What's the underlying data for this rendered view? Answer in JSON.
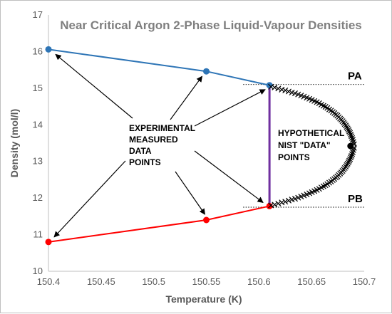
{
  "chart_data": {
    "type": "scatter",
    "title": "Near Critical Argon 2-Phase Liquid-Vapour Densities",
    "xlabel": "Temperature (K)",
    "ylabel": "Density (mol/l)",
    "xlim": [
      150.4,
      150.7
    ],
    "ylim": [
      10,
      17
    ],
    "xticks": [
      "150.4",
      "150.45",
      "150.5",
      "150.55",
      "150.6",
      "150.65",
      "150.7"
    ],
    "yticks": [
      "10",
      "11",
      "12",
      "13",
      "14",
      "15",
      "16",
      "17"
    ],
    "grid": false,
    "colors": {
      "liquid": "#2e75b6",
      "vapour": "#ff0000",
      "critical_line": "#7030a0",
      "nist": "#000000"
    },
    "series": [
      {
        "role": "liquid",
        "x": [
          150.4,
          150.55,
          150.61
        ],
        "y": [
          16.06,
          15.46,
          15.08
        ]
      },
      {
        "role": "vapour",
        "x": [
          150.4,
          150.55,
          150.61
        ],
        "y": [
          10.8,
          11.4,
          11.78
        ]
      }
    ],
    "vertical_line": {
      "x": 150.61,
      "y": [
        11.78,
        15.08
      ]
    },
    "nist_points": {
      "x": [
        150.6114,
        150.6149,
        150.6183,
        150.6217,
        150.625,
        150.6282,
        150.6313,
        150.6343,
        150.6372,
        150.64,
        150.6427,
        150.6454,
        150.6479,
        150.6503,
        150.6527,
        150.655,
        150.6572,
        150.6593,
        150.6613,
        150.6632,
        150.665,
        150.6668,
        150.6685,
        150.6701,
        150.6717,
        150.6731,
        150.6745,
        150.6758,
        150.6771,
        150.6783,
        150.6794,
        150.6805,
        150.6815,
        150.6825,
        150.6834,
        150.6842,
        150.6851,
        150.6858,
        150.6865,
        150.6872,
        150.6879,
        150.6885,
        150.6891,
        150.6897,
        150.6903,
        150.6903,
        150.6897,
        150.6891,
        150.6885,
        150.6879,
        150.6872,
        150.6865,
        150.6858,
        150.6851,
        150.6842,
        150.6834,
        150.6825,
        150.6815,
        150.6805,
        150.6794,
        150.6783,
        150.6771,
        150.6758,
        150.6745,
        150.6731,
        150.6717,
        150.6701,
        150.6685,
        150.6668,
        150.665,
        150.6632,
        150.6613,
        150.6593,
        150.6572,
        150.655,
        150.6527,
        150.6503,
        150.6479,
        150.6454,
        150.6427,
        150.64,
        150.6372,
        150.6343,
        150.6313,
        150.6282,
        150.625,
        150.6217,
        150.6183,
        150.6149,
        150.6114
      ],
      "y": [
        15.04,
        15.02,
        14.99,
        14.96,
        14.94,
        14.91,
        14.88,
        14.86,
        14.83,
        14.8,
        14.77,
        14.74,
        14.71,
        14.68,
        14.65,
        14.62,
        14.59,
        14.55,
        14.52,
        14.49,
        14.46,
        14.42,
        14.39,
        14.35,
        14.32,
        14.28,
        14.25,
        14.21,
        14.17,
        14.14,
        14.1,
        14.06,
        14.02,
        13.98,
        13.94,
        13.9,
        13.86,
        13.82,
        13.78,
        13.73,
        13.69,
        13.64,
        13.59,
        13.53,
        13.47,
        13.37,
        13.31,
        13.25,
        13.2,
        13.15,
        13.11,
        13.06,
        13.02,
        12.98,
        12.94,
        12.9,
        12.86,
        12.82,
        12.78,
        12.74,
        12.7,
        12.67,
        12.63,
        12.59,
        12.56,
        12.52,
        12.49,
        12.45,
        12.42,
        12.38,
        12.35,
        12.32,
        12.29,
        12.25,
        12.22,
        12.19,
        12.16,
        12.13,
        12.1,
        12.07,
        12.04,
        12.01,
        11.98,
        11.96,
        11.93,
        11.9,
        11.88,
        11.85,
        11.82,
        11.8
      ]
    },
    "critical_point": {
      "x": 150.687,
      "y": 13.42
    },
    "reference_lines": [
      {
        "label": "PA",
        "y": 15.1,
        "x_from": 150.585,
        "x_to": 150.7
      },
      {
        "label": "PB",
        "y": 11.75,
        "x_from": 150.585,
        "x_to": 150.7
      }
    ],
    "annotations": {
      "experimental": [
        "EXPERIMENTAL",
        "MEASURED",
        "DATA",
        "POINTS"
      ],
      "nist": [
        "HYPOTHETICAL",
        "NIST \"DATA\"",
        "POINTS"
      ]
    }
  }
}
